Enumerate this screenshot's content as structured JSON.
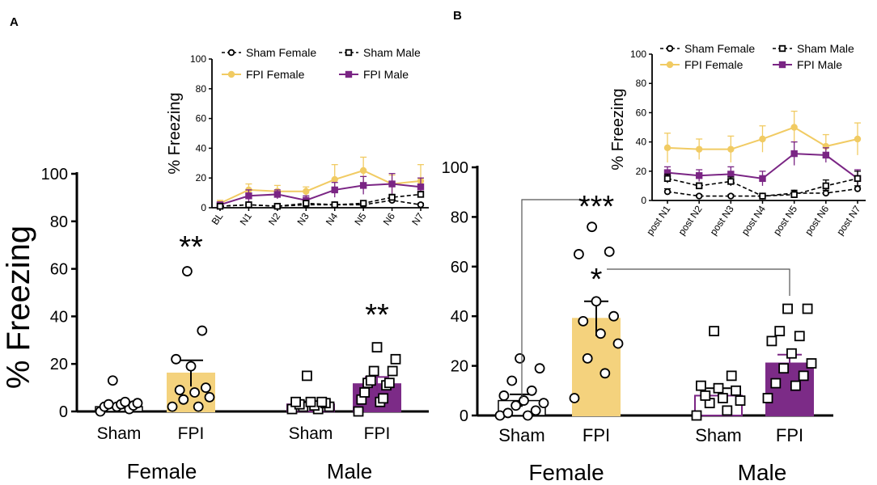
{
  "panel_labels": [
    "A",
    "B"
  ],
  "colors": {
    "fpi_female": "#f1cb63",
    "fpi_female_bar": "#f4d27d",
    "fpi_male": "#7a2584",
    "fpi_male_bar": "#7c2b87",
    "sham": "#000000"
  },
  "chart_data": [
    {
      "id": "A-main",
      "type": "bar",
      "title": "",
      "ylabel": "% Freezing",
      "ylim": [
        0,
        100
      ],
      "yticks": [
        0,
        20,
        40,
        60,
        80,
        100
      ],
      "group_labels": [
        "Female",
        "Male"
      ],
      "categories": [
        "Sham",
        "FPI",
        "Sham",
        "FPI"
      ],
      "values": [
        2,
        16,
        3,
        11.5
      ],
      "sem": [
        1,
        5.5,
        1.2,
        3
      ],
      "points": [
        [
          0,
          1,
          2,
          2,
          2.5,
          3,
          3,
          3.5,
          4,
          13
        ],
        [
          2,
          2,
          5,
          6,
          8,
          9,
          10,
          19,
          22,
          34,
          59
        ],
        [
          1,
          1,
          2,
          2,
          2.5,
          3,
          3.5,
          4,
          4,
          4,
          15
        ],
        [
          0,
          4,
          5,
          5.5,
          8,
          11,
          12,
          12,
          13,
          17,
          17,
          22,
          27
        ]
      ],
      "significance": [
        {
          "label": "**",
          "over": "FPI Female"
        },
        {
          "label": "**",
          "over": "FPI Male"
        }
      ]
    },
    {
      "id": "A-inset",
      "type": "line",
      "ylabel": "% Freezing",
      "ylim": [
        0,
        100
      ],
      "yticks": [
        0,
        20,
        40,
        60,
        80,
        100
      ],
      "x": [
        "BL",
        "N1",
        "N2",
        "N3",
        "N4",
        "N5",
        "N6",
        "N7"
      ],
      "legend": [
        "Sham Female",
        "Sham Male",
        "FPI Female",
        "FPI Male"
      ],
      "series": [
        {
          "name": "Sham Female",
          "values": [
            1,
            2,
            1,
            2,
            2,
            2,
            5,
            2
          ],
          "err": [
            1,
            1,
            1,
            1,
            1,
            1,
            1.5,
            1
          ]
        },
        {
          "name": "Sham Male",
          "values": [
            1,
            2,
            1,
            3,
            2,
            3,
            7,
            9
          ],
          "err": [
            1,
            1,
            1,
            1,
            1,
            1,
            2,
            2
          ]
        },
        {
          "name": "FPI Female",
          "values": [
            3,
            12,
            11,
            11,
            19,
            25,
            16,
            18
          ],
          "err": [
            2,
            4,
            4,
            3,
            10,
            9,
            6,
            11
          ]
        },
        {
          "name": "FPI Male",
          "values": [
            2,
            8,
            9,
            5,
            12,
            15,
            16,
            14
          ],
          "err": [
            1,
            4,
            3,
            3,
            5,
            6,
            7,
            6
          ]
        }
      ]
    },
    {
      "id": "B-main",
      "type": "bar",
      "title": "",
      "ylabel": "",
      "ylim": [
        0,
        100
      ],
      "yticks": [
        0,
        20,
        40,
        60,
        80,
        100
      ],
      "group_labels": [
        "Female",
        "Male"
      ],
      "categories": [
        "Sham",
        "FPI",
        "Sham",
        "FPI"
      ],
      "values": [
        6,
        39,
        8,
        21
      ],
      "sem": [
        2.5,
        7,
        3,
        3.5
      ],
      "points": [
        [
          0,
          0,
          1,
          2,
          4,
          5,
          6,
          8,
          10,
          14,
          19,
          23
        ],
        [
          7,
          17,
          23,
          29,
          33,
          38,
          40,
          46,
          65,
          66,
          76
        ],
        [
          0,
          2,
          5,
          6,
          7,
          8,
          10,
          11,
          12,
          16,
          34
        ],
        [
          7,
          12,
          13,
          16,
          19,
          21,
          25,
          30,
          32,
          34,
          43,
          43
        ]
      ],
      "significance": [
        {
          "label": "***",
          "between": [
            "Sham Female",
            "FPI Female"
          ]
        },
        {
          "label": "*",
          "between": [
            "FPI Female",
            "FPI Male"
          ]
        }
      ]
    },
    {
      "id": "B-inset",
      "type": "line",
      "ylabel": "% Freezing",
      "ylim": [
        0,
        100
      ],
      "yticks": [
        0,
        20,
        40,
        60,
        80,
        100
      ],
      "x": [
        "post N1",
        "post N2",
        "post N3",
        "post N4",
        "post N5",
        "post N6",
        "post N7"
      ],
      "legend": [
        "Sham Female",
        "Sham Male",
        "FPI Female",
        "FPI Male"
      ],
      "series": [
        {
          "name": "Sham Female",
          "values": [
            6,
            3,
            3,
            3,
            5,
            5,
            8
          ],
          "err": [
            2,
            1,
            1,
            1,
            2,
            2,
            2
          ]
        },
        {
          "name": "Sham Male",
          "values": [
            15,
            10,
            13,
            3,
            4,
            10,
            15
          ],
          "err": [
            3,
            2,
            3,
            1,
            2,
            4,
            5
          ]
        },
        {
          "name": "FPI Female",
          "values": [
            36,
            35,
            35,
            42,
            50,
            37,
            42
          ],
          "err": [
            10,
            7,
            9,
            9,
            11,
            8,
            11
          ]
        },
        {
          "name": "FPI Male",
          "values": [
            19,
            17,
            18,
            15,
            32,
            31,
            15
          ],
          "err": [
            4,
            4,
            5,
            5,
            8,
            5,
            6
          ]
        }
      ]
    }
  ]
}
